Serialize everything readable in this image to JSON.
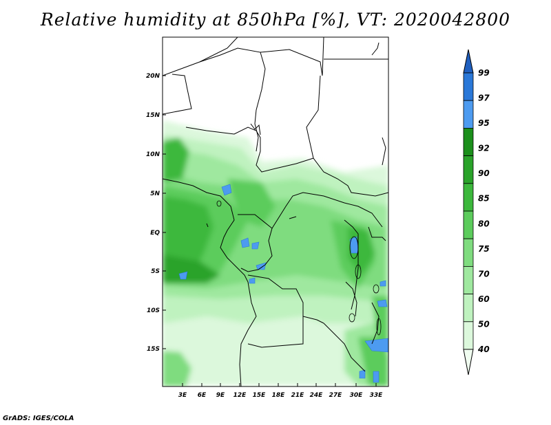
{
  "title": "Relative humidity at 850hPa [%], VT: 2020042800",
  "credit": "GrADS: IGES/COLA",
  "map": {
    "lat_labels": [
      "20N",
      "15N",
      "10N",
      "5N",
      "EQ",
      "5S",
      "10S",
      "15S"
    ],
    "lon_labels": [
      "3E",
      "6E",
      "9E",
      "12E",
      "15E",
      "18E",
      "21E",
      "24E",
      "27E",
      "30E",
      "33E"
    ]
  },
  "colorbar": {
    "labels": [
      "99",
      "97",
      "95",
      "92",
      "90",
      "85",
      "80",
      "75",
      "70",
      "60",
      "50",
      "40"
    ],
    "colors": [
      "#1f5fbf",
      "#2a78d8",
      "#4d9bf0",
      "#1b8f1b",
      "#2aa32a",
      "#3cb83c",
      "#5ccc5c",
      "#7fdc7f",
      "#9fe89f",
      "#bff2bf",
      "#dcf8dc",
      "#f0fdf0"
    ]
  }
}
